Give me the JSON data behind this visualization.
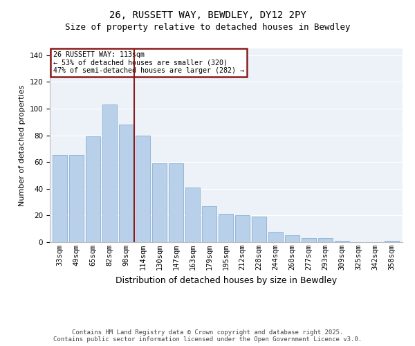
{
  "title1": "26, RUSSETT WAY, BEWDLEY, DY12 2PY",
  "title2": "Size of property relative to detached houses in Bewdley",
  "xlabel": "Distribution of detached houses by size in Bewdley",
  "ylabel": "Number of detached properties",
  "categories": [
    "33sqm",
    "49sqm",
    "65sqm",
    "82sqm",
    "98sqm",
    "114sqm",
    "130sqm",
    "147sqm",
    "163sqm",
    "179sqm",
    "195sqm",
    "212sqm",
    "228sqm",
    "244sqm",
    "260sqm",
    "277sqm",
    "293sqm",
    "309sqm",
    "325sqm",
    "342sqm",
    "358sqm"
  ],
  "values": [
    65,
    65,
    79,
    103,
    88,
    80,
    59,
    59,
    41,
    27,
    21,
    20,
    19,
    8,
    5,
    3,
    3,
    1,
    0,
    0,
    1
  ],
  "bar_color": "#b8d0ea",
  "bar_edge_color": "#8ab0d0",
  "vline_color": "#8b1a1a",
  "annotation_text": "26 RUSSETT WAY: 113sqm\n← 53% of detached houses are smaller (320)\n47% of semi-detached houses are larger (282) →",
  "annotation_box_color": "#8b1a1a",
  "background_color": "#edf2f9",
  "grid_color": "#ffffff",
  "ylim": [
    0,
    145
  ],
  "yticks": [
    0,
    20,
    40,
    60,
    80,
    100,
    120,
    140
  ],
  "footer": "Contains HM Land Registry data © Crown copyright and database right 2025.\nContains public sector information licensed under the Open Government Licence v3.0.",
  "title1_fontsize": 10,
  "title2_fontsize": 9,
  "xlabel_fontsize": 9,
  "ylabel_fontsize": 8,
  "tick_fontsize": 7.5,
  "footer_fontsize": 6.5
}
